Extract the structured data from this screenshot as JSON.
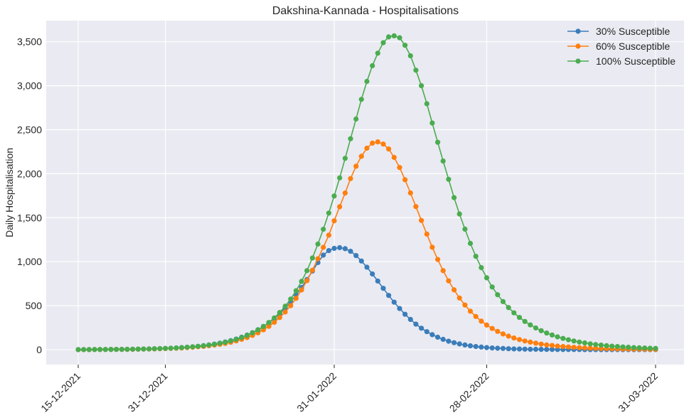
{
  "chart_data": {
    "type": "line",
    "title": "Dakshina-Kannada - Hospitalisations",
    "xlabel": "",
    "ylabel": "Daily Hospitalisation",
    "x_start": "15-12-2021",
    "x_end": "31-03-2022",
    "x_tick_labels": [
      "15-12-2021",
      "31-12-2021",
      "31-01-2022",
      "28-02-2022",
      "31-03-2022"
    ],
    "x_tick_dates": [
      "2021-12-15",
      "2021-12-31",
      "2022-01-31",
      "2022-02-28",
      "2022-03-31"
    ],
    "ylim": [
      -170,
      3740
    ],
    "y_ticks": [
      0,
      500,
      1000,
      1500,
      2000,
      2500,
      3000,
      3500
    ],
    "y_tick_labels": [
      "0",
      "500",
      "1,000",
      "1,500",
      "2,000",
      "2,500",
      "3,000",
      "3,500"
    ],
    "grid": true,
    "legend_position": "top-right",
    "series": [
      {
        "name": "30% Susceptible",
        "color": "#3a7dba",
        "values": [
          0,
          0,
          0,
          1,
          1,
          1,
          2,
          2,
          3,
          3,
          4,
          5,
          6,
          8,
          9,
          11,
          13,
          16,
          19,
          23,
          27,
          32,
          38,
          45,
          53,
          63,
          74,
          87,
          102,
          120,
          141,
          165,
          193,
          226,
          264,
          307,
          356,
          411,
          474,
          544,
          621,
          706,
          797,
          893,
          990,
          1074,
          1126,
          1151,
          1159,
          1148,
          1118,
          1069,
          1007,
          937,
          860,
          779,
          697,
          616,
          539,
          467,
          402,
          343,
          290,
          244,
          204,
          170,
          141,
          117,
          96,
          79,
          65,
          53,
          43,
          35,
          29,
          23,
          19,
          16,
          13,
          10,
          8,
          7,
          5,
          4,
          4,
          3,
          2,
          2,
          1,
          1,
          1,
          1,
          1,
          0,
          0,
          0,
          0,
          0,
          0,
          0,
          0,
          0,
          0,
          0,
          0,
          0,
          0
        ]
      },
      {
        "name": "60% Susceptible",
        "color": "#ff7f0e",
        "values": [
          0,
          0,
          0,
          1,
          1,
          1,
          2,
          2,
          3,
          3,
          4,
          5,
          6,
          7,
          8,
          10,
          12,
          14,
          16,
          19,
          23,
          27,
          32,
          37,
          44,
          52,
          61,
          71,
          84,
          99,
          117,
          137,
          162,
          191,
          225,
          265,
          311,
          365,
          428,
          500,
          583,
          678,
          784,
          902,
          1033,
          1163,
          1301,
          1464,
          1624,
          1780,
          1944,
          2085,
          2198,
          2290,
          2347,
          2362,
          2337,
          2281,
          2185,
          2070,
          1931,
          1781,
          1626,
          1468,
          1313,
          1164,
          1025,
          898,
          782,
          679,
          587,
          507,
          437,
          377,
          324,
          279,
          240,
          207,
          178,
          153,
          132,
          114,
          98,
          85,
          73,
          63,
          54,
          47,
          40,
          35,
          30,
          26,
          22,
          19,
          17,
          14,
          12,
          11,
          9,
          8,
          7,
          6,
          5,
          5,
          4,
          3,
          3
        ]
      },
      {
        "name": "100% Susceptible",
        "color": "#4aac4f",
        "values": [
          0,
          1,
          1,
          1,
          2,
          2,
          2,
          3,
          3,
          4,
          5,
          6,
          7,
          8,
          10,
          12,
          14,
          16,
          19,
          23,
          27,
          32,
          38,
          44,
          52,
          61,
          72,
          84,
          99,
          117,
          138,
          162,
          191,
          224,
          263,
          308,
          361,
          422,
          493,
          575,
          669,
          776,
          898,
          1042,
          1200,
          1368,
          1552,
          1746,
          1952,
          2174,
          2397,
          2621,
          2845,
          3049,
          3227,
          3370,
          3489,
          3555,
          3567,
          3545,
          3460,
          3340,
          3176,
          3000,
          2795,
          2576,
          2357,
          2144,
          1936,
          1728,
          1542,
          1370,
          1207,
          1060,
          932,
          816,
          712,
          624,
          546,
          478,
          418,
          366,
          320,
          281,
          246,
          215,
          189,
          166,
          145,
          127,
          112,
          98,
          86,
          76,
          66,
          58,
          51,
          45,
          39,
          35,
          30,
          27,
          23,
          21,
          18,
          16,
          14
        ]
      }
    ]
  }
}
